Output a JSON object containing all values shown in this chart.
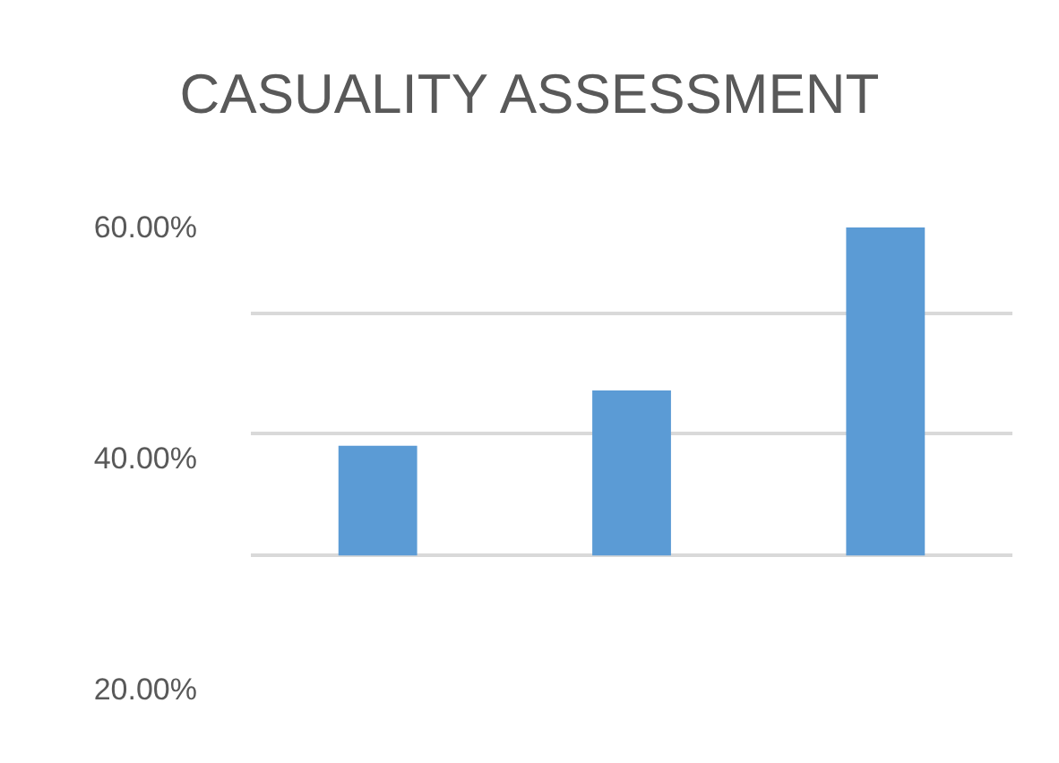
{
  "chart_data": {
    "type": "bar",
    "title": "CASUALITY ASSESSMENT",
    "categories": [
      null,
      null,
      null
    ],
    "base": [
      31.6,
      31.6,
      31.6
    ],
    "values": [
      9.5,
      14.3,
      28.4
    ],
    "color": "#5b9bd5",
    "ylim": [
      20,
      60
    ],
    "yticks": [
      {
        "value": 20,
        "label": "20.00%"
      },
      {
        "value": 31.6,
        "label": null
      },
      {
        "value": 40,
        "label": "40.00%"
      },
      {
        "value": 42.2,
        "label": null
      },
      {
        "value": 52.6,
        "label": null
      },
      {
        "value": 60,
        "label": "60.00%"
      }
    ],
    "grid": true
  }
}
